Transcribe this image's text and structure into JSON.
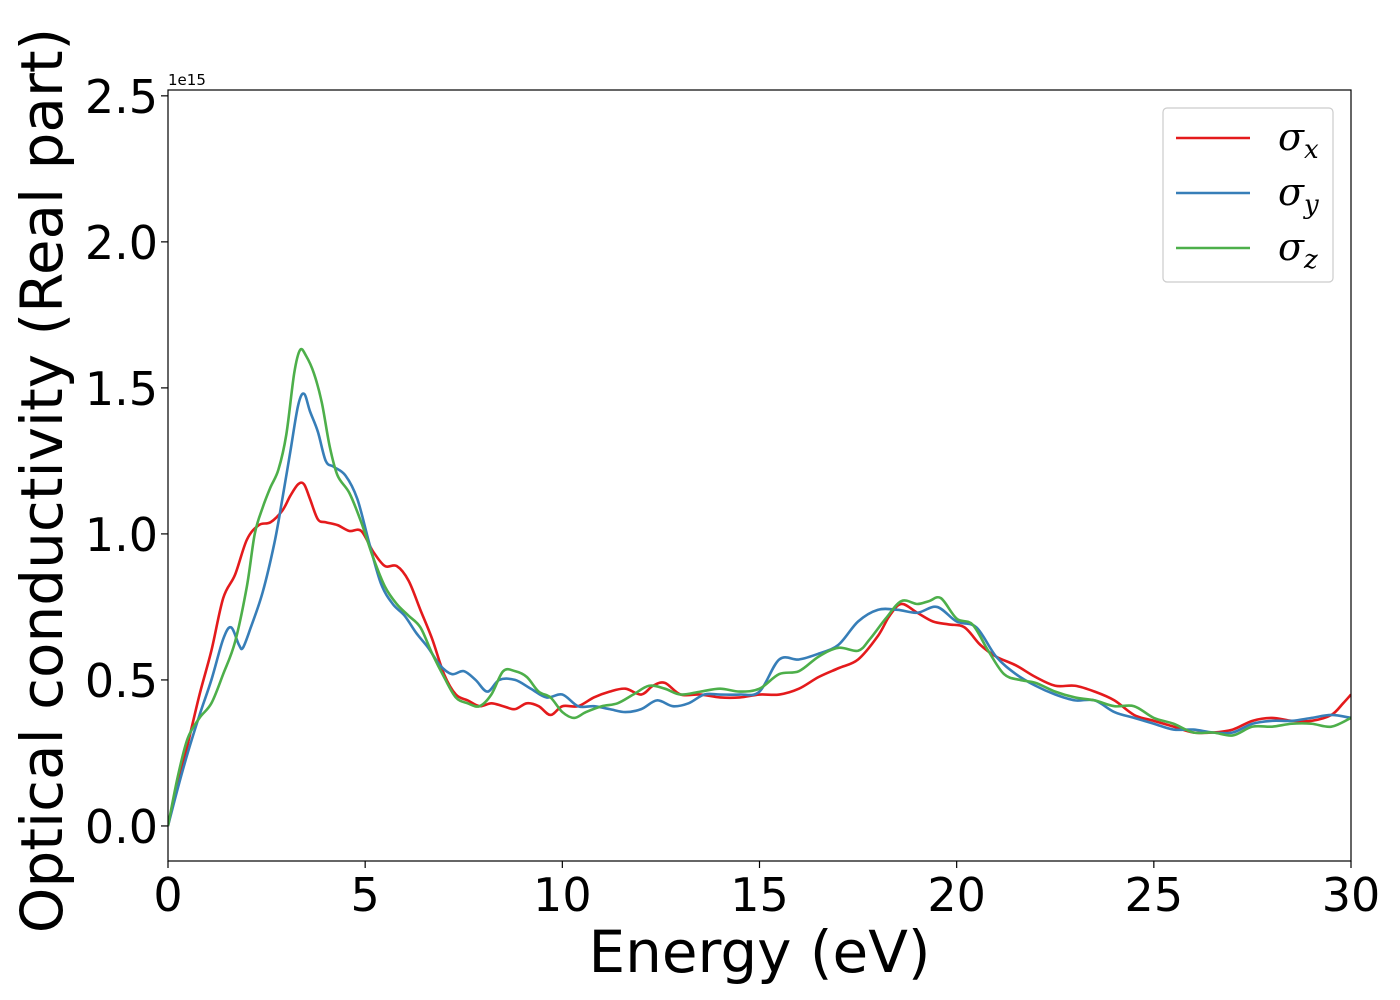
{
  "chart_data": {
    "type": "line",
    "xlabel": "Energy (eV)",
    "ylabel": "Optical conductivity (Real part)",
    "y_offset_label": "1e15",
    "xlim": [
      0,
      30
    ],
    "ylim": [
      -0.12,
      2.52
    ],
    "x_ticks": [
      0,
      5,
      10,
      15,
      20,
      25,
      30
    ],
    "x_tick_labels": [
      "0",
      "5",
      "10",
      "15",
      "20",
      "25",
      "30"
    ],
    "y_ticks": [
      0.0,
      0.5,
      1.0,
      1.5,
      2.0,
      2.5
    ],
    "y_tick_labels": [
      "0.0",
      "0.5",
      "1.0",
      "1.5",
      "2.0",
      "2.5"
    ],
    "grid": false,
    "legend_position": "top-right",
    "series": [
      {
        "name": "σx",
        "symbol": "σ",
        "subscript": "x",
        "color": "#e41a1c",
        "x": [
          0,
          0.25,
          0.5,
          0.8,
          1.1,
          1.4,
          1.7,
          2.0,
          2.3,
          2.6,
          2.9,
          3.1,
          3.3,
          3.45,
          3.6,
          3.8,
          4.0,
          4.3,
          4.6,
          4.9,
          5.2,
          5.5,
          5.8,
          6.1,
          6.4,
          6.7,
          7.0,
          7.3,
          7.6,
          7.9,
          8.2,
          8.5,
          8.8,
          9.1,
          9.4,
          9.7,
          10.0,
          10.4,
          10.8,
          11.2,
          11.6,
          12.0,
          12.3,
          12.6,
          13.0,
          13.5,
          14.0,
          14.5,
          15.0,
          15.5,
          16.0,
          16.5,
          17.0,
          17.5,
          18.0,
          18.3,
          18.6,
          19.0,
          19.4,
          19.8,
          20.2,
          20.6,
          21.0,
          21.5,
          22.0,
          22.5,
          23.0,
          23.5,
          24.0,
          24.5,
          25.0,
          25.5,
          26.0,
          26.5,
          27.0,
          27.5,
          28.0,
          28.5,
          29.0,
          29.5,
          29.8,
          30.0
        ],
        "y": [
          0.0,
          0.15,
          0.28,
          0.45,
          0.6,
          0.78,
          0.86,
          0.98,
          1.03,
          1.04,
          1.08,
          1.13,
          1.17,
          1.17,
          1.12,
          1.05,
          1.04,
          1.03,
          1.01,
          1.01,
          0.94,
          0.89,
          0.89,
          0.84,
          0.74,
          0.64,
          0.52,
          0.45,
          0.43,
          0.41,
          0.42,
          0.41,
          0.4,
          0.42,
          0.41,
          0.38,
          0.41,
          0.41,
          0.44,
          0.46,
          0.47,
          0.45,
          0.48,
          0.49,
          0.45,
          0.45,
          0.44,
          0.44,
          0.45,
          0.45,
          0.47,
          0.51,
          0.54,
          0.57,
          0.65,
          0.72,
          0.76,
          0.73,
          0.7,
          0.69,
          0.68,
          0.62,
          0.58,
          0.55,
          0.51,
          0.48,
          0.48,
          0.46,
          0.43,
          0.38,
          0.36,
          0.34,
          0.32,
          0.32,
          0.33,
          0.36,
          0.37,
          0.36,
          0.36,
          0.38,
          0.42,
          0.45
        ]
      },
      {
        "name": "σy",
        "symbol": "σ",
        "subscript": "y",
        "color": "#377eb8",
        "x": [
          0,
          0.25,
          0.5,
          0.8,
          1.1,
          1.4,
          1.6,
          1.8,
          1.9,
          2.1,
          2.4,
          2.7,
          2.9,
          3.1,
          3.3,
          3.45,
          3.6,
          3.8,
          4.0,
          4.2,
          4.5,
          4.8,
          5.1,
          5.4,
          5.7,
          6.0,
          6.3,
          6.6,
          6.9,
          7.2,
          7.5,
          7.8,
          8.1,
          8.4,
          8.8,
          9.2,
          9.6,
          10.0,
          10.4,
          10.8,
          11.2,
          11.6,
          12.0,
          12.4,
          12.8,
          13.2,
          13.6,
          14.0,
          14.5,
          15.0,
          15.5,
          16.0,
          16.5,
          17.0,
          17.5,
          18.0,
          18.5,
          19.0,
          19.5,
          20.0,
          20.5,
          21.0,
          21.5,
          22.0,
          22.5,
          23.0,
          23.5,
          24.0,
          24.5,
          25.0,
          25.5,
          26.0,
          26.5,
          27.0,
          27.5,
          28.0,
          28.5,
          29.0,
          29.5,
          30.0
        ],
        "y": [
          0.0,
          0.13,
          0.25,
          0.38,
          0.5,
          0.64,
          0.68,
          0.62,
          0.61,
          0.68,
          0.8,
          0.97,
          1.12,
          1.28,
          1.44,
          1.48,
          1.42,
          1.35,
          1.25,
          1.23,
          1.2,
          1.12,
          0.97,
          0.83,
          0.76,
          0.72,
          0.66,
          0.61,
          0.55,
          0.52,
          0.53,
          0.5,
          0.46,
          0.5,
          0.5,
          0.47,
          0.44,
          0.45,
          0.41,
          0.41,
          0.4,
          0.39,
          0.4,
          0.43,
          0.41,
          0.42,
          0.45,
          0.45,
          0.45,
          0.46,
          0.57,
          0.57,
          0.59,
          0.62,
          0.7,
          0.74,
          0.74,
          0.73,
          0.75,
          0.7,
          0.68,
          0.58,
          0.52,
          0.48,
          0.45,
          0.43,
          0.43,
          0.39,
          0.37,
          0.35,
          0.33,
          0.33,
          0.32,
          0.32,
          0.35,
          0.36,
          0.36,
          0.37,
          0.38,
          0.37
        ]
      },
      {
        "name": "σz",
        "symbol": "σ",
        "subscript": "z",
        "color": "#4daf4a",
        "x": [
          0,
          0.25,
          0.5,
          0.8,
          1.1,
          1.4,
          1.7,
          2.0,
          2.2,
          2.4,
          2.6,
          2.8,
          3.0,
          3.2,
          3.35,
          3.5,
          3.7,
          3.9,
          4.1,
          4.3,
          4.6,
          4.9,
          5.2,
          5.5,
          5.8,
          6.1,
          6.4,
          6.7,
          7.0,
          7.3,
          7.6,
          7.9,
          8.2,
          8.5,
          8.8,
          9.1,
          9.4,
          9.7,
          10.0,
          10.3,
          10.6,
          11.0,
          11.4,
          11.8,
          12.2,
          12.6,
          13.0,
          13.5,
          14.0,
          14.5,
          15.0,
          15.5,
          16.0,
          16.5,
          17.0,
          17.5,
          17.8,
          18.2,
          18.6,
          19.0,
          19.3,
          19.6,
          20.0,
          20.4,
          20.8,
          21.2,
          21.6,
          22.0,
          22.5,
          23.0,
          23.5,
          24.0,
          24.5,
          25.0,
          25.5,
          26.0,
          26.5,
          27.0,
          27.5,
          28.0,
          28.5,
          29.0,
          29.5,
          30.0
        ],
        "y": [
          0.0,
          0.17,
          0.3,
          0.37,
          0.42,
          0.52,
          0.63,
          0.82,
          1.0,
          1.09,
          1.16,
          1.22,
          1.34,
          1.55,
          1.63,
          1.61,
          1.55,
          1.45,
          1.3,
          1.2,
          1.14,
          1.04,
          0.92,
          0.82,
          0.76,
          0.72,
          0.68,
          0.59,
          0.51,
          0.44,
          0.42,
          0.41,
          0.45,
          0.53,
          0.53,
          0.51,
          0.46,
          0.44,
          0.39,
          0.37,
          0.39,
          0.41,
          0.42,
          0.45,
          0.48,
          0.47,
          0.45,
          0.46,
          0.47,
          0.46,
          0.47,
          0.52,
          0.53,
          0.58,
          0.61,
          0.6,
          0.64,
          0.71,
          0.77,
          0.76,
          0.77,
          0.78,
          0.71,
          0.69,
          0.6,
          0.52,
          0.5,
          0.49,
          0.46,
          0.44,
          0.43,
          0.41,
          0.41,
          0.37,
          0.35,
          0.32,
          0.32,
          0.31,
          0.34,
          0.34,
          0.35,
          0.35,
          0.34,
          0.37
        ]
      }
    ]
  }
}
